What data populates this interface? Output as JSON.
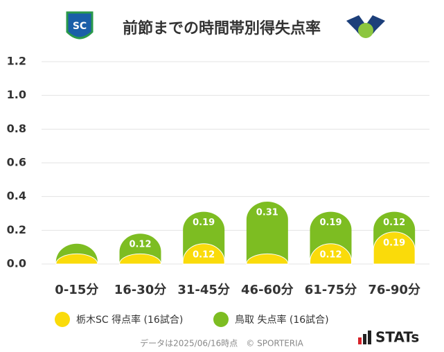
{
  "chart_data": {
    "type": "stacked-bar",
    "title": "前節までの時間帯別得失点率",
    "categories": [
      "0-15分",
      "16-30分",
      "31-45分",
      "46-60分",
      "61-75分",
      "76-90分"
    ],
    "series": [
      {
        "name": "栃木SC 得点率 (16試合)",
        "color": "#fadb0a",
        "values": [
          0.06,
          0.06,
          0.12,
          0.06,
          0.12,
          0.19
        ]
      },
      {
        "name": "鳥取 失点率 (16試合)",
        "color": "#7dbd22",
        "values": [
          0.06,
          0.12,
          0.19,
          0.31,
          0.19,
          0.12
        ]
      }
    ],
    "ylim": [
      0,
      1.2
    ],
    "yticks": [
      {
        "value": 0,
        "label": "0.0"
      },
      0.2,
      0.4,
      0.6,
      0.8,
      {
        "value": 1,
        "label": "1.0"
      },
      1.2
    ],
    "grid": true,
    "footnote": "データは2025/06/16時点　© SPORTERIA",
    "brand": "STATs"
  }
}
